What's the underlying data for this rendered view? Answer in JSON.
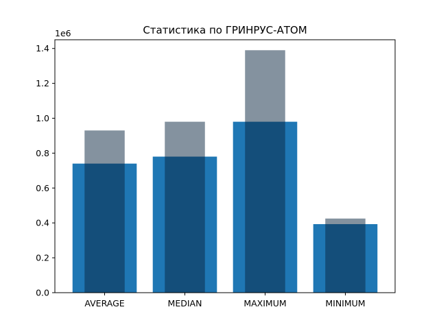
{
  "chart_data": {
    "type": "bar",
    "title": "Статистика по ГРИНРУС-АТОМ",
    "xlabel": "",
    "ylabel": "",
    "y_offset_label": "1e6",
    "categories": [
      "AVERAGE",
      "MEDIAN",
      "MAXIMUM",
      "MINIMUM"
    ],
    "series": [
      {
        "values": [
          740000,
          780000,
          980000,
          393000
        ],
        "color": "#1f77b4",
        "width": "wide"
      },
      {
        "values": [
          930000,
          980000,
          1390000,
          425000
        ],
        "color": "#0a2540",
        "opacity": 0.5,
        "width": "narrow"
      }
    ],
    "ylim": [
      0,
      1.45
    ],
    "yticks": [
      "0.0",
      "0.2",
      "0.4",
      "0.6",
      "0.8",
      "1.0",
      "1.2",
      "1.4"
    ],
    "grid": false,
    "legend": "none"
  }
}
